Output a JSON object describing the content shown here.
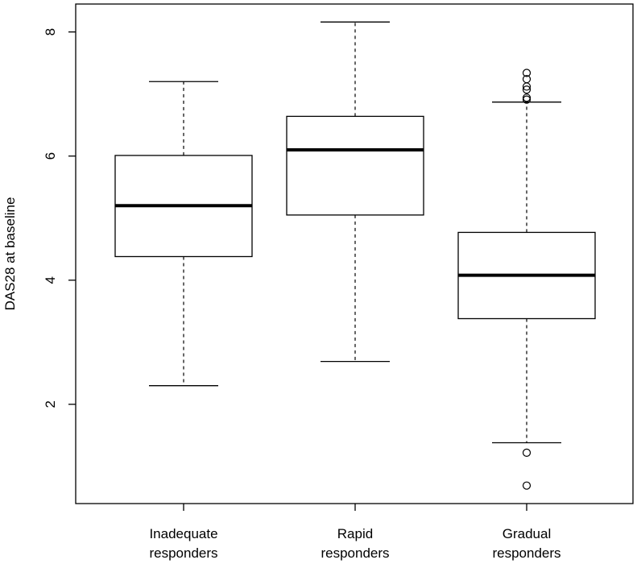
{
  "chart_data": {
    "type": "box",
    "title": "",
    "xlabel": "",
    "ylabel": "DAS28 at baseline",
    "ylim": [
      0.4,
      8.45
    ],
    "yticks": [
      2,
      4,
      6,
      8
    ],
    "ytick_labels": [
      "2",
      "4",
      "6",
      "8"
    ],
    "categories": [
      [
        "Inadequate",
        "responders"
      ],
      [
        "Rapid",
        "responders"
      ],
      [
        "Gradual",
        "responders"
      ]
    ],
    "boxes": [
      {
        "name": "Inadequate responders",
        "whisker_low": 2.3,
        "q1": 4.38,
        "median": 5.2,
        "q3": 6.01,
        "whisker_high": 7.2,
        "outliers": []
      },
      {
        "name": "Rapid responders",
        "whisker_low": 2.69,
        "q1": 5.05,
        "median": 6.1,
        "q3": 6.64,
        "whisker_high": 8.16,
        "outliers": []
      },
      {
        "name": "Gradual responders",
        "whisker_low": 1.38,
        "q1": 3.38,
        "median": 4.08,
        "q3": 4.77,
        "whisker_high": 6.87,
        "outliers": [
          0.69,
          1.22,
          6.91,
          6.94,
          7.07,
          7.12,
          7.24,
          7.34
        ]
      }
    ]
  }
}
